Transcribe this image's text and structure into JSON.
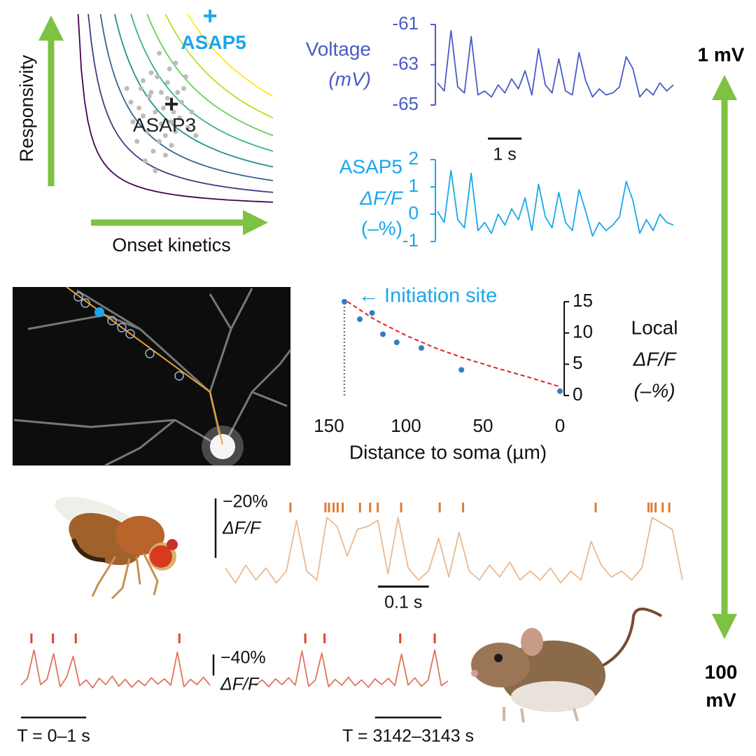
{
  "chart_data": [
    {
      "type": "scatter",
      "xlabel": "Onset kinetics",
      "ylabel": "Responsivity",
      "xlim": [
        0,
        1
      ],
      "ylim": [
        0,
        1
      ],
      "color": "#bdbdbd",
      "x": [
        0.3,
        0.35,
        0.4,
        0.42,
        0.45,
        0.48,
        0.5,
        0.38,
        0.33,
        0.55,
        0.6,
        0.52,
        0.44,
        0.36,
        0.41,
        0.47,
        0.53,
        0.58,
        0.31,
        0.39,
        0.46,
        0.5,
        0.43,
        0.37,
        0.49,
        0.56,
        0.62,
        0.34,
        0.45,
        0.51,
        0.4,
        0.47,
        0.54,
        0.28,
        0.42,
        0.57,
        0.48,
        0.44,
        0.36,
        0.52
      ],
      "values": [
        0.55,
        0.62,
        0.7,
        0.5,
        0.6,
        0.65,
        0.45,
        0.4,
        0.35,
        0.55,
        0.5,
        0.75,
        0.8,
        0.48,
        0.3,
        0.38,
        0.6,
        0.42,
        0.45,
        0.58,
        0.52,
        0.33,
        0.68,
        0.25,
        0.72,
        0.62,
        0.38,
        0.52,
        0.44,
        0.5,
        0.6,
        0.28,
        0.47,
        0.62,
        0.2,
        0.68,
        0.57,
        0.35,
        0.66,
        0.4
      ],
      "contours": [
        {
          "level": 0.04,
          "color": "#440154"
        },
        {
          "level": 0.09,
          "color": "#443a83"
        },
        {
          "level": 0.15,
          "color": "#31688e"
        },
        {
          "level": 0.22,
          "color": "#21918c"
        },
        {
          "level": 0.3,
          "color": "#35b779"
        },
        {
          "level": 0.38,
          "color": "#6ece58"
        },
        {
          "level": 0.47,
          "color": "#b5de2b"
        },
        {
          "level": 0.58,
          "color": "#fde725"
        }
      ],
      "markers": [
        {
          "name": "ASAP5",
          "x": 0.69,
          "y": 0.99,
          "color": "#1aa7ec"
        },
        {
          "name": "ASAP3",
          "x": 0.5,
          "y": 0.54,
          "color": "#222222"
        }
      ]
    },
    {
      "type": "line",
      "ylabel": [
        "Voltage",
        "(mV)"
      ],
      "color": "#4a5bc4",
      "xlim": [
        0,
        7
      ],
      "ylim": [
        -65,
        -61
      ],
      "yticks": [
        -65,
        -63,
        -61
      ],
      "x": [
        0,
        0.2,
        0.4,
        0.6,
        0.8,
        1,
        1.2,
        1.4,
        1.6,
        1.8,
        2,
        2.2,
        2.4,
        2.6,
        2.8,
        3,
        3.2,
        3.4,
        3.6,
        3.8,
        4,
        4.2,
        4.4,
        4.6,
        4.8,
        5,
        5.2,
        5.4,
        5.6,
        5.8,
        6,
        6.2,
        6.4,
        6.6,
        6.8,
        7
      ],
      "values": [
        -63.9,
        -64.3,
        -61.3,
        -64.1,
        -64.4,
        -61.6,
        -64.5,
        -64.3,
        -64.6,
        -64.0,
        -64.4,
        -63.7,
        -64.2,
        -63.3,
        -64.5,
        -62.2,
        -64.0,
        -64.4,
        -62.7,
        -64.3,
        -64.5,
        -62.4,
        -63.8,
        -64.6,
        -64.2,
        -64.5,
        -64.4,
        -64.1,
        -62.6,
        -63.2,
        -64.6,
        -64.2,
        -64.5,
        -63.9,
        -64.3,
        -64.0
      ],
      "scalebar_x": {
        "value": 1,
        "label": "1 s"
      }
    },
    {
      "type": "line",
      "ylabel": [
        "ASAP5",
        "ΔF/F",
        "(–%)"
      ],
      "color": "#1aa7ec",
      "xlim": [
        0,
        7
      ],
      "ylim": [
        -1,
        2
      ],
      "yticks": [
        -1,
        0,
        1,
        2
      ],
      "x": [
        0,
        0.2,
        0.4,
        0.6,
        0.8,
        1,
        1.2,
        1.4,
        1.6,
        1.8,
        2,
        2.2,
        2.4,
        2.6,
        2.8,
        3,
        3.2,
        3.4,
        3.6,
        3.8,
        4,
        4.2,
        4.4,
        4.6,
        4.8,
        5,
        5.2,
        5.4,
        5.6,
        5.8,
        6,
        6.2,
        6.4,
        6.6,
        6.8,
        7
      ],
      "values": [
        0.1,
        -0.3,
        1.6,
        -0.2,
        -0.5,
        1.5,
        -0.6,
        -0.3,
        -0.7,
        0.0,
        -0.4,
        0.2,
        -0.2,
        0.6,
        -0.6,
        1.1,
        -0.1,
        -0.5,
        0.8,
        -0.3,
        -0.6,
        0.9,
        0.1,
        -0.8,
        -0.3,
        -0.6,
        -0.4,
        -0.1,
        1.2,
        0.5,
        -0.7,
        -0.2,
        -0.6,
        0.0,
        -0.3,
        -0.4
      ]
    },
    {
      "type": "scatter",
      "annotation": "← Initiation site",
      "xlabel": "Distance to soma (µm)",
      "ylabel": [
        "Local",
        "ΔF/F",
        "(–%)"
      ],
      "color": "#2f7fbf",
      "xlim": [
        150,
        0
      ],
      "xticks": [
        150,
        100,
        50,
        0
      ],
      "ylim": [
        0,
        15
      ],
      "yticks": [
        0,
        5,
        10,
        15
      ],
      "x": [
        140,
        130,
        122,
        115,
        106,
        90,
        64,
        0
      ],
      "values": [
        15,
        12.2,
        13.2,
        9.8,
        8.5,
        7.6,
        4.1,
        0.7
      ],
      "fit": {
        "color": "#e82020",
        "x": [
          138,
          120,
          100,
          80,
          60,
          40,
          20,
          0
        ],
        "values": [
          15,
          12.1,
          9.6,
          7.5,
          5.8,
          4.3,
          2.9,
          1.4
        ]
      }
    },
    {
      "type": "line",
      "ylabel": "ΔF/F",
      "color": "#eab98e",
      "spike_color": "#e07b30",
      "xlim": [
        0,
        0.9
      ],
      "ylim": [
        4,
        -20
      ],
      "x": [
        0,
        0.02,
        0.04,
        0.06,
        0.08,
        0.1,
        0.12,
        0.14,
        0.16,
        0.18,
        0.2,
        0.22,
        0.24,
        0.26,
        0.28,
        0.3,
        0.32,
        0.34,
        0.36,
        0.38,
        0.4,
        0.42,
        0.44,
        0.46,
        0.48,
        0.5,
        0.52,
        0.54,
        0.56,
        0.58,
        0.6,
        0.62,
        0.64,
        0.66,
        0.68,
        0.7,
        0.72,
        0.74,
        0.76,
        0.78,
        0.8,
        0.82,
        0.84,
        0.86,
        0.88,
        0.9
      ],
      "values": [
        -2,
        3,
        -3,
        2,
        -2,
        3,
        -1,
        -18,
        -1,
        2,
        -19,
        -16,
        -6,
        -15,
        -16,
        -18,
        0,
        -19,
        -2,
        2,
        -1,
        -12,
        1,
        -14,
        -1,
        2,
        -3,
        1,
        -4,
        2,
        -1,
        2,
        -2,
        3,
        -1,
        2,
        -11,
        -3,
        1,
        -1,
        2,
        -2,
        -19,
        -17,
        -15,
        2
      ],
      "spikes": [
        0.128,
        0.197,
        0.204,
        0.213,
        0.221,
        0.231,
        0.265,
        0.285,
        0.3,
        0.346,
        0.422,
        0.468,
        0.729,
        0.833,
        0.839,
        0.847,
        0.861,
        0.874
      ],
      "scalebar_y": {
        "value": -20,
        "label": "−20%"
      },
      "scalebar_x": {
        "value": 0.1,
        "label": "0.1 s"
      }
    },
    {
      "type": "line",
      "ylabel": "ΔF/F",
      "color": "#e0735f",
      "spike_color": "#d9462e",
      "xlim": [
        0,
        2.9
      ],
      "ylim": [
        20,
        -80
      ],
      "scalebar_y": {
        "value": -40,
        "label": "−40%"
      },
      "segments": [
        {
          "label": "T = 0–1 s",
          "window": [
            0,
            1
          ],
          "x": [
            0,
            0.1,
            0.2,
            0.3,
            0.4,
            0.5,
            0.6,
            0.7,
            0.8,
            0.9,
            1,
            1.1,
            1.2,
            1.3,
            1.4,
            1.5,
            1.6,
            1.7,
            1.8,
            1.9,
            2,
            2.1,
            2.2,
            2.3,
            2.4,
            2.5,
            2.6,
            2.7,
            2.8,
            2.9
          ],
          "values": [
            5,
            -8,
            -62,
            4,
            -6,
            -55,
            8,
            -10,
            -50,
            6,
            -5,
            10,
            -8,
            4,
            -12,
            7,
            -6,
            9,
            -4,
            6,
            -9,
            3,
            -7,
            5,
            -58,
            8,
            -6,
            4,
            -10,
            5
          ],
          "spikes": [
            0.16,
            0.49,
            0.84,
            2.43
          ]
        },
        {
          "label": "T = 3142–3143 s",
          "window": [
            1.8,
            2.8
          ],
          "x": [
            0,
            0.1,
            0.2,
            0.3,
            0.4,
            0.5,
            0.6,
            0.7,
            0.8,
            0.9,
            1,
            1.1,
            1.2,
            1.3,
            1.4,
            1.5,
            1.6,
            1.7,
            1.8,
            1.9,
            2,
            2.1,
            2.2,
            2.3,
            2.4,
            2.5,
            2.6,
            2.7,
            2.8,
            2.9
          ],
          "values": [
            6,
            -5,
            8,
            -7,
            4,
            -9,
            5,
            -60,
            7,
            -4,
            -56,
            8,
            -6,
            5,
            -10,
            6,
            -5,
            9,
            -7,
            4,
            -8,
            6,
            -54,
            5,
            -9,
            7,
            -4,
            -62,
            6,
            -3
          ],
          "spikes": [
            0.75,
            1.04,
            2.18,
            2.7
          ]
        }
      ]
    }
  ],
  "scale_arrow": {
    "top": "1 mV",
    "bottom": [
      "100",
      "mV"
    ]
  }
}
